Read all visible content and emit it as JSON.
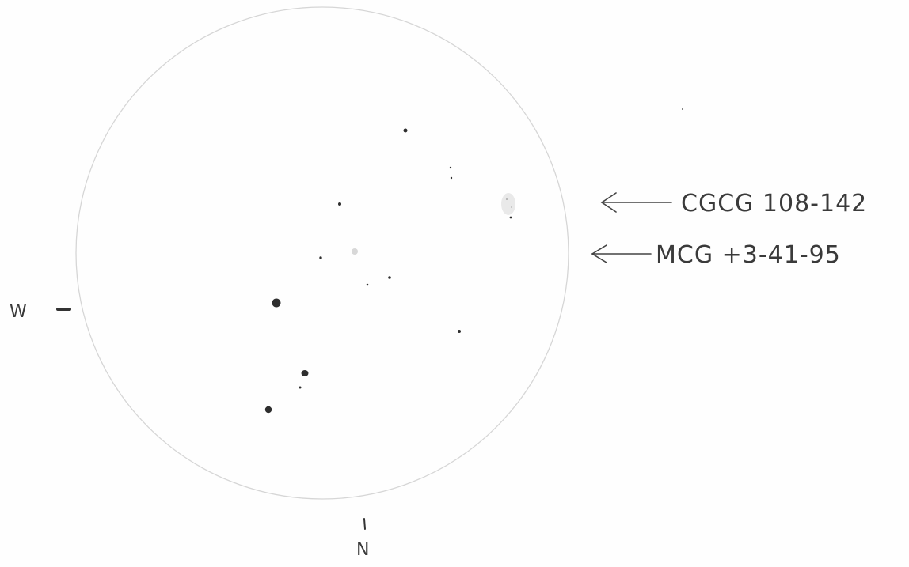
{
  "sketch": {
    "labels": {
      "galaxy_1": "CGCG 108-142",
      "galaxy_2": "MCG +3-41-95"
    },
    "directions": {
      "west": "W",
      "north": "N"
    },
    "colors": {
      "paper": "#fefefe",
      "pencil": "#3a3a3a",
      "circle": "#d6d6d6"
    }
  }
}
